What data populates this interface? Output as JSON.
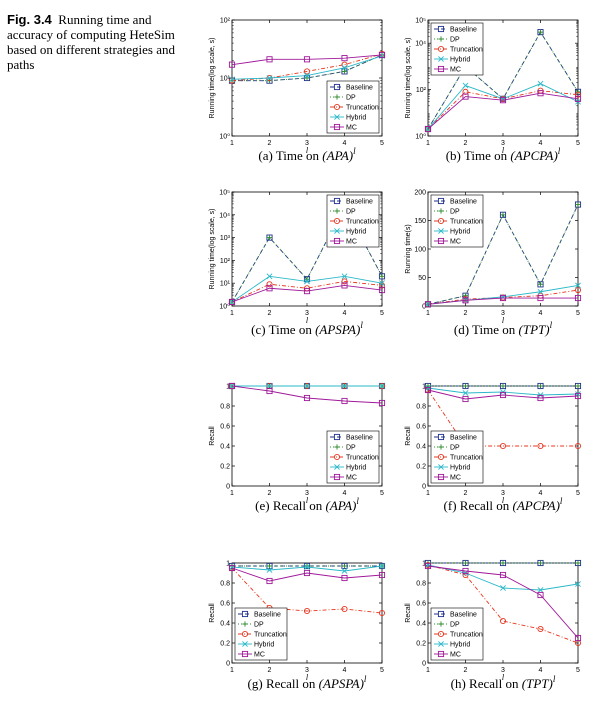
{
  "figure": {
    "label": "Fig. 3.4",
    "caption": "Running time and accuracy of computing HeteSim based on different strategies and paths"
  },
  "series_styles": [
    {
      "name": "Baseline",
      "color": "#1f2f8f",
      "dash": "4,3",
      "marker": "square"
    },
    {
      "name": "DP",
      "color": "#2e8b2e",
      "dash": "1,2",
      "marker": "plus"
    },
    {
      "name": "Truncation",
      "color": "#e8341c",
      "dash": "4,2,1,2",
      "marker": "circle"
    },
    {
      "name": "Hybrid",
      "color": "#2ab8c8",
      "dash": "",
      "marker": "x"
    },
    {
      "name": "MC",
      "color": "#a0189a",
      "dash": "",
      "marker": "square"
    }
  ],
  "chart_data": [
    {
      "id": "a",
      "type": "line",
      "caption": "(a) Time on (APA)",
      "caption_main": "(a) Time on ",
      "caption_path": "(APA)",
      "caption_sup": "l",
      "xlabel": "l",
      "ylabel": "Running time(log scale, s)",
      "scale": "log",
      "ylim": [
        1,
        100
      ],
      "yticks": [
        1,
        10,
        100
      ],
      "ytick_labels": [
        "10⁰",
        "10¹",
        "10²"
      ],
      "x": [
        1,
        2,
        3,
        4,
        5
      ],
      "legend_pos": "bottom-right",
      "series": [
        {
          "name": "Baseline",
          "values": [
            9,
            9,
            10,
            13,
            25
          ]
        },
        {
          "name": "DP",
          "values": [
            9,
            9,
            10,
            13,
            25
          ]
        },
        {
          "name": "Truncation",
          "values": [
            9,
            10,
            13,
            17,
            26
          ]
        },
        {
          "name": "Hybrid",
          "values": [
            9.5,
            10,
            11,
            15,
            24
          ]
        },
        {
          "name": "MC",
          "values": [
            17,
            21,
            21,
            22,
            25
          ]
        }
      ]
    },
    {
      "id": "b",
      "type": "line",
      "caption": "(b) Time on (APCPA)",
      "caption_main": "(b) Time on ",
      "caption_path": "(APCPA)",
      "caption_sup": "l",
      "xlabel": "l",
      "ylabel": "Running time(log scale, s)",
      "scale": "log",
      "ylim": [
        1,
        100000
      ],
      "yticks": [
        1,
        100,
        10000
      ],
      "ytick_labels": [
        "10⁰",
        "10²",
        "10⁴"
      ],
      "ytick_extra": {
        "value": 100000,
        "label": "10⁵"
      },
      "x": [
        1,
        2,
        3,
        4,
        5
      ],
      "legend_pos": "top-left",
      "series": [
        {
          "name": "Baseline",
          "values": [
            2,
            1000,
            40,
            30000,
            80
          ]
        },
        {
          "name": "DP",
          "values": [
            2,
            1000,
            40,
            30000,
            80
          ]
        },
        {
          "name": "Truncation",
          "values": [
            2,
            80,
            40,
            90,
            60
          ]
        },
        {
          "name": "Hybrid",
          "values": [
            2,
            150,
            40,
            180,
            30
          ]
        },
        {
          "name": "MC",
          "values": [
            2,
            50,
            35,
            70,
            40
          ]
        }
      ]
    },
    {
      "id": "c",
      "type": "line",
      "caption": "(c) Time on (APSPA)",
      "caption_main": "(c) Time on ",
      "caption_path": "(APSPA)",
      "caption_sup": "l",
      "xlabel": "l",
      "ylabel": "Running time(log scale, s)",
      "scale": "log",
      "ylim": [
        1,
        100000
      ],
      "yticks": [
        1,
        10,
        100,
        1000,
        10000,
        100000
      ],
      "ytick_labels": [
        "10⁰",
        "10¹",
        "10²",
        "10³",
        "10⁴",
        "10⁵"
      ],
      "x": [
        1,
        2,
        3,
        4,
        5
      ],
      "legend_pos": "top-right",
      "series": [
        {
          "name": "Baseline",
          "values": [
            1.5,
            1000,
            15,
            25000,
            20
          ]
        },
        {
          "name": "DP",
          "values": [
            1.5,
            1000,
            15,
            25000,
            20
          ]
        },
        {
          "name": "Truncation",
          "values": [
            1.5,
            9,
            6,
            12,
            8
          ]
        },
        {
          "name": "Hybrid",
          "values": [
            1.5,
            20,
            12,
            20,
            10
          ]
        },
        {
          "name": "MC",
          "values": [
            1.5,
            6,
            4.5,
            8,
            5
          ]
        }
      ]
    },
    {
      "id": "d",
      "type": "line",
      "caption": "(d) Time on (TPT)",
      "caption_main": "(d) Time on ",
      "caption_path": "(TPT)",
      "caption_sup": "l",
      "xlabel": "l",
      "ylabel": "Running time(s)",
      "scale": "linear",
      "ylim": [
        0,
        200
      ],
      "yticks": [
        0,
        50,
        100,
        150,
        200
      ],
      "ytick_labels": [
        "0",
        "50",
        "100",
        "150",
        "200"
      ],
      "x": [
        1,
        2,
        3,
        4,
        5
      ],
      "legend_pos": "top-left",
      "series": [
        {
          "name": "Baseline",
          "values": [
            3,
            18,
            160,
            38,
            178
          ]
        },
        {
          "name": "DP",
          "values": [
            3,
            18,
            160,
            38,
            178
          ]
        },
        {
          "name": "Truncation",
          "values": [
            3,
            12,
            15,
            18,
            28
          ]
        },
        {
          "name": "Hybrid",
          "values": [
            3,
            10,
            16,
            25,
            36
          ]
        },
        {
          "name": "MC",
          "values": [
            3,
            10,
            14,
            14,
            14
          ]
        }
      ]
    },
    {
      "id": "e",
      "type": "line",
      "caption": "(e) Recall on (APA)",
      "caption_main": "(e) Recall on ",
      "caption_path": "(APA)",
      "caption_sup": "l",
      "xlabel": "l",
      "ylabel": "Recall",
      "scale": "linear",
      "ylim": [
        0,
        1
      ],
      "yticks": [
        0,
        0.2,
        0.4,
        0.6,
        0.8,
        1
      ],
      "ytick_labels": [
        "0",
        "0.2",
        "0.4",
        "0.6",
        "0.8",
        "1"
      ],
      "x": [
        1,
        2,
        3,
        4,
        5
      ],
      "legend_pos": "bottom-right",
      "series": [
        {
          "name": "Baseline",
          "values": [
            1,
            1,
            1,
            1,
            1
          ]
        },
        {
          "name": "DP",
          "values": [
            1,
            1,
            1,
            1,
            1
          ]
        },
        {
          "name": "Truncation",
          "values": [
            1,
            1,
            1,
            1,
            1
          ]
        },
        {
          "name": "Hybrid",
          "values": [
            1,
            1,
            1,
            1,
            1
          ]
        },
        {
          "name": "MC",
          "values": [
            1,
            0.95,
            0.88,
            0.85,
            0.83
          ]
        }
      ]
    },
    {
      "id": "f",
      "type": "line",
      "caption": "(f) Recall on (APCPA)",
      "caption_main": "(f) Recall on ",
      "caption_path": "(APCPA)",
      "caption_sup": "l",
      "xlabel": "l",
      "ylabel": "Recall",
      "scale": "linear",
      "ylim": [
        0,
        1
      ],
      "yticks": [
        0,
        0.2,
        0.4,
        0.6,
        0.8,
        1
      ],
      "ytick_labels": [
        "0",
        "0.2",
        "0.4",
        "0.6",
        "0.8",
        "1"
      ],
      "x": [
        1,
        2,
        3,
        4,
        5
      ],
      "legend_pos": "bottom-left",
      "series": [
        {
          "name": "Baseline",
          "values": [
            1,
            1,
            1,
            1,
            1
          ]
        },
        {
          "name": "DP",
          "values": [
            1,
            1,
            1,
            1,
            1
          ]
        },
        {
          "name": "Truncation",
          "values": [
            0.96,
            0.4,
            0.4,
            0.4,
            0.4
          ]
        },
        {
          "name": "Hybrid",
          "values": [
            0.98,
            0.93,
            0.94,
            0.91,
            0.92
          ]
        },
        {
          "name": "MC",
          "values": [
            0.96,
            0.87,
            0.91,
            0.88,
            0.9
          ]
        }
      ]
    },
    {
      "id": "g",
      "type": "line",
      "caption": "(g) Recall on (APSPA)",
      "caption_main": "(g) Recall on ",
      "caption_path": "(APSPA)",
      "caption_sup": "l",
      "xlabel": "l",
      "ylabel": "Recall",
      "scale": "linear",
      "ylim": [
        0,
        1
      ],
      "yticks": [
        0,
        0.2,
        0.4,
        0.6,
        0.8,
        1
      ],
      "ytick_labels": [
        "0",
        "0.2",
        "0.4",
        "0.6",
        "0.8",
        "1"
      ],
      "x": [
        1,
        2,
        3,
        4,
        5
      ],
      "legend_pos": "bottom-left",
      "series": [
        {
          "name": "Baseline",
          "values": [
            0.97,
            0.97,
            0.97,
            0.97,
            0.97
          ]
        },
        {
          "name": "DP",
          "values": [
            0.97,
            0.97,
            0.97,
            0.97,
            0.97
          ]
        },
        {
          "name": "Truncation",
          "values": [
            0.95,
            0.55,
            0.52,
            0.54,
            0.5
          ]
        },
        {
          "name": "Hybrid",
          "values": [
            0.96,
            0.93,
            0.96,
            0.92,
            0.97
          ]
        },
        {
          "name": "MC",
          "values": [
            0.95,
            0.82,
            0.9,
            0.85,
            0.88
          ]
        }
      ]
    },
    {
      "id": "h",
      "type": "line",
      "caption": "(h) Recall on (TPT)",
      "caption_main": "(h) Recall on ",
      "caption_path": "(TPT)",
      "caption_sup": "l",
      "xlabel": "l",
      "ylabel": "Recall",
      "scale": "linear",
      "ylim": [
        0,
        1
      ],
      "yticks": [
        0,
        0.2,
        0.4,
        0.6,
        0.8,
        1
      ],
      "ytick_labels": [
        "0",
        "0.2",
        "0.4",
        "0.6",
        "0.8",
        "1"
      ],
      "x": [
        1,
        2,
        3,
        4,
        5
      ],
      "legend_pos": "bottom-left",
      "series": [
        {
          "name": "Baseline",
          "values": [
            1,
            1,
            1,
            1,
            1
          ]
        },
        {
          "name": "DP",
          "values": [
            1,
            1,
            1,
            1,
            1
          ]
        },
        {
          "name": "Truncation",
          "values": [
            0.98,
            0.88,
            0.42,
            0.34,
            0.2
          ]
        },
        {
          "name": "Hybrid",
          "values": [
            0.98,
            0.9,
            0.75,
            0.73,
            0.79
          ]
        },
        {
          "name": "MC",
          "values": [
            0.97,
            0.92,
            0.88,
            0.68,
            0.25
          ]
        }
      ]
    }
  ]
}
